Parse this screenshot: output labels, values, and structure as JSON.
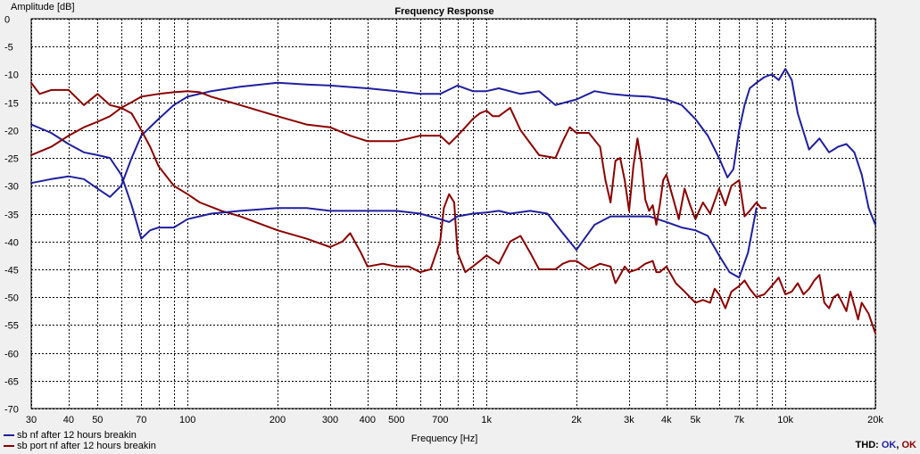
{
  "chart_data": {
    "type": "line",
    "title": "Frequency Response",
    "ylabel": "Amplitude [dB]",
    "xlabel": "Frequency [Hz]",
    "xscale": "log",
    "xlim": [
      30,
      20000
    ],
    "ylim": [
      -70,
      0
    ],
    "grid": true,
    "legend_position": "bottom-left",
    "xticks": [
      {
        "v": 30,
        "t": "30"
      },
      {
        "v": 40,
        "t": "40"
      },
      {
        "v": 50,
        "t": "50"
      },
      {
        "v": 70,
        "t": "70"
      },
      {
        "v": 100,
        "t": "100"
      },
      {
        "v": 200,
        "t": "200"
      },
      {
        "v": 300,
        "t": "300"
      },
      {
        "v": 400,
        "t": "400"
      },
      {
        "v": 500,
        "t": "500"
      },
      {
        "v": 700,
        "t": "700"
      },
      {
        "v": 1000,
        "t": "1k"
      },
      {
        "v": 2000,
        "t": "2k"
      },
      {
        "v": 3000,
        "t": "3k"
      },
      {
        "v": 4000,
        "t": "4k"
      },
      {
        "v": 5000,
        "t": "5k"
      },
      {
        "v": 7000,
        "t": "7k"
      },
      {
        "v": 10000,
        "t": "10k"
      },
      {
        "v": 20000,
        "t": "20k"
      }
    ],
    "xgrid": [
      30,
      40,
      50,
      60,
      70,
      80,
      90,
      100,
      200,
      300,
      400,
      500,
      600,
      700,
      800,
      900,
      1000,
      2000,
      3000,
      4000,
      5000,
      6000,
      7000,
      8000,
      9000,
      10000,
      20000
    ],
    "yticks": [
      0,
      -5,
      -10,
      -15,
      -20,
      -25,
      -30,
      -35,
      -40,
      -45,
      -50,
      -55,
      -60,
      -65,
      -70
    ],
    "series": [
      {
        "name": "sb nf after 12 hours breakin",
        "color": "#1f1f9f",
        "x": [
          30,
          35,
          40,
          45,
          50,
          55,
          60,
          65,
          70,
          80,
          90,
          100,
          120,
          150,
          200,
          250,
          300,
          400,
          500,
          600,
          700,
          800,
          900,
          1000,
          1100,
          1300,
          1500,
          1700,
          2000,
          2300,
          2600,
          3000,
          3500,
          4000,
          4500,
          5000,
          5500,
          6000,
          6400,
          6700,
          7000,
          7300,
          7600,
          8000,
          8500,
          9000,
          9500,
          10000,
          10500,
          11000,
          12000,
          13000,
          14000,
          15000,
          16000,
          17000,
          18000,
          19000,
          20000
        ],
        "y": [
          -29.5,
          -28.8,
          -28.3,
          -28.8,
          -30.5,
          -32.0,
          -30.0,
          -25.0,
          -21.0,
          -18.0,
          -15.5,
          -14.0,
          -13.0,
          -12.2,
          -11.5,
          -11.8,
          -12.0,
          -12.5,
          -13.0,
          -13.5,
          -13.5,
          -12.0,
          -13.0,
          -13.0,
          -12.5,
          -13.5,
          -13.0,
          -15.5,
          -14.5,
          -13.0,
          -13.5,
          -13.8,
          -14.0,
          -14.5,
          -15.5,
          -18.0,
          -21.0,
          -25.0,
          -28.5,
          -27.0,
          -20.0,
          -15.5,
          -12.5,
          -11.5,
          -10.5,
          -10.0,
          -11.0,
          -9.0,
          -11.0,
          -17.0,
          -23.5,
          -21.5,
          -24.0,
          -23.0,
          -22.5,
          -24.0,
          -28.0,
          -34.0,
          -37.0
        ]
      },
      {
        "name": "sb port nf after 12 hours breakin",
        "color": "#8b0000",
        "x": [
          30,
          32,
          35,
          40,
          45,
          50,
          55,
          60,
          65,
          70,
          75,
          80,
          90,
          100,
          110,
          130,
          150,
          200,
          250,
          300,
          330,
          350,
          380,
          400,
          450,
          500,
          550,
          600,
          650,
          700,
          720,
          750,
          780,
          800,
          850,
          900,
          950,
          1000,
          1100,
          1200,
          1300,
          1400,
          1500,
          1700,
          1800,
          1900,
          2000,
          2200,
          2400,
          2600,
          2700,
          2800,
          2900,
          3000,
          3200,
          3400,
          3600,
          3700,
          3800,
          4000,
          4300,
          4600,
          5000,
          5300,
          5600,
          5800,
          6000,
          6300,
          6600,
          7000,
          7300,
          7600,
          8000,
          8500,
          9000,
          9500,
          10000,
          10500,
          11000,
          11500,
          12000,
          12500,
          13000,
          13500,
          14000,
          14500,
          15000,
          15500,
          16000,
          16500,
          17000,
          17500,
          18000,
          19000,
          20000
        ],
        "y": [
          -11.5,
          -13.5,
          -12.8,
          -12.8,
          -15.5,
          -13.5,
          -15.5,
          -16.0,
          -17.0,
          -20.0,
          -23.0,
          -26.5,
          -30.0,
          -31.5,
          -33.0,
          -34.5,
          -35.5,
          -38.0,
          -39.5,
          -41.0,
          -40.0,
          -38.5,
          -42.0,
          -44.5,
          -44.0,
          -44.5,
          -44.5,
          -45.5,
          -45.0,
          -40.0,
          -34.0,
          -31.5,
          -33.0,
          -42.0,
          -45.5,
          -44.5,
          -43.5,
          -42.5,
          -44.0,
          -40.0,
          -39.0,
          -42.0,
          -45.0,
          -45.0,
          -44.0,
          -43.5,
          -43.5,
          -45.0,
          -44.0,
          -44.5,
          -47.5,
          -46.0,
          -44.5,
          -45.5,
          -45.0,
          -44.0,
          -43.5,
          -45.5,
          -45.5,
          -44.5,
          -47.5,
          -49.0,
          -51.0,
          -50.5,
          -51.0,
          -48.5,
          -49.5,
          -52.0,
          -49.0,
          -48.0,
          -47.0,
          -48.5,
          -50.0,
          -49.5,
          -48.0,
          -46.5,
          -49.5,
          -49.0,
          -47.5,
          -49.5,
          -48.5,
          -47.0,
          -46.0,
          -51.0,
          -52.0,
          -50.0,
          -49.5,
          -51.0,
          -52.5,
          -49.0,
          -51.5,
          -54.0,
          -51.0,
          -53.0,
          -56.5
        ]
      },
      {
        "name": "",
        "color": "#1f1f9f",
        "x": [
          30,
          35,
          40,
          45,
          50,
          55,
          60,
          65,
          70,
          75,
          80,
          90,
          100,
          120,
          150,
          200,
          250,
          300,
          400,
          500,
          600,
          700,
          750,
          800,
          900,
          1000,
          1100,
          1200,
          1400,
          1600,
          1800,
          2000,
          2300,
          2600,
          3000,
          3500,
          4000,
          4500,
          5000,
          5500,
          6000,
          6500,
          7000,
          7500,
          8000
        ],
        "y": [
          -19.0,
          -20.5,
          -22.5,
          -24.0,
          -24.5,
          -25.0,
          -28.0,
          -33.5,
          -39.5,
          -38.0,
          -37.5,
          -37.5,
          -36.0,
          -35.0,
          -34.5,
          -34.0,
          -34.0,
          -34.5,
          -34.5,
          -34.5,
          -35.0,
          -36.0,
          -36.5,
          -35.5,
          -35.0,
          -34.8,
          -34.5,
          -35.0,
          -34.5,
          -35.0,
          -38.5,
          -41.5,
          -37.0,
          -35.5,
          -35.5,
          -35.5,
          -36.5,
          -37.5,
          -38.0,
          -39.0,
          -42.5,
          -45.5,
          -46.5,
          -42.0,
          -34.0
        ]
      },
      {
        "name": "",
        "color": "#8b0000",
        "x": [
          30,
          35,
          40,
          45,
          50,
          55,
          60,
          65,
          70,
          80,
          90,
          100,
          110,
          120,
          150,
          200,
          250,
          300,
          350,
          400,
          450,
          500,
          550,
          600,
          650,
          700,
          750,
          800,
          850,
          900,
          950,
          1000,
          1050,
          1100,
          1200,
          1300,
          1500,
          1700,
          1800,
          1900,
          2000,
          2200,
          2400,
          2500,
          2600,
          2700,
          2800,
          2900,
          3000,
          3100,
          3200,
          3300,
          3400,
          3500,
          3600,
          3700,
          3800,
          3900,
          4000,
          4200,
          4400,
          4600,
          4800,
          5000,
          5300,
          5600,
          6000,
          6300,
          6600,
          7000,
          7300,
          7600,
          8000,
          8300,
          8600
        ],
        "y": [
          -24.5,
          -23.0,
          -21.0,
          -19.5,
          -18.5,
          -17.5,
          -16.0,
          -15.0,
          -14.0,
          -13.5,
          -13.2,
          -13.0,
          -13.2,
          -14.0,
          -15.5,
          -17.5,
          -19.0,
          -19.5,
          -21.0,
          -22.0,
          -22.0,
          -22.0,
          -21.5,
          -21.0,
          -21.0,
          -21.0,
          -22.5,
          -21.0,
          -19.5,
          -18.0,
          -17.0,
          -16.5,
          -17.5,
          -17.5,
          -16.0,
          -20.0,
          -24.5,
          -25.0,
          -22.0,
          -19.5,
          -20.5,
          -20.5,
          -23.0,
          -29.0,
          -33.0,
          -25.5,
          -25.0,
          -29.0,
          -34.5,
          -26.5,
          -21.5,
          -26.0,
          -32.5,
          -34.5,
          -33.5,
          -37.0,
          -33.5,
          -29.0,
          -28.0,
          -32.0,
          -36.0,
          -30.5,
          -33.5,
          -36.0,
          -33.0,
          -35.0,
          -30.5,
          -33.5,
          -30.0,
          -29.0,
          -35.5,
          -34.5,
          -33.0,
          -34.0,
          -34.0
        ]
      }
    ]
  },
  "thd": {
    "label": "THD:",
    "a": "OK",
    "sep": ",",
    "b": "OK"
  }
}
